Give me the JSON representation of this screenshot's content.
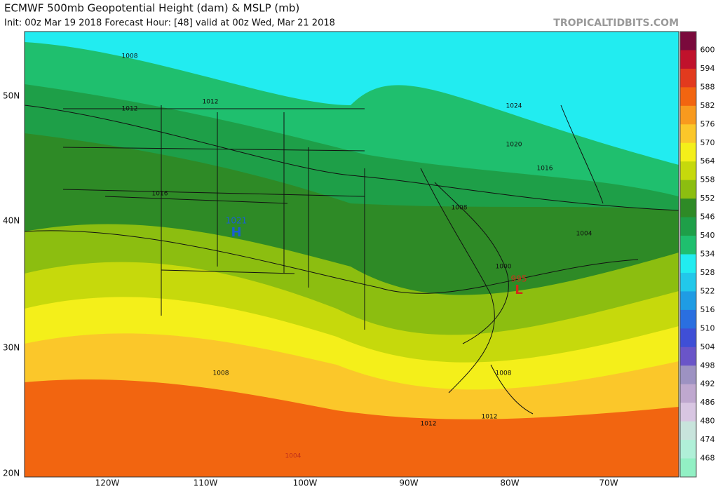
{
  "header": {
    "title": "ECMWF 500mb Geopotential Height (dam) & MSLP (mb)",
    "subtitle": "Init: 00z Mar 19 2018   Forecast Hour: [48]   valid at 00z Wed, Mar 21 2018",
    "credit": "TROPICALTIDBITS.COM"
  },
  "map": {
    "lat_labels": [
      "50N",
      "40N",
      "30N",
      "20N"
    ],
    "lon_labels": [
      "120W",
      "110W",
      "100W",
      "90W",
      "80W",
      "70W"
    ],
    "annotations": [
      "1008",
      "1012",
      "1012",
      "1016",
      "1024",
      "1020",
      "1016",
      "1008",
      "1004",
      "1000",
      "995",
      "L",
      "1021",
      "H",
      "1008",
      "1008",
      "1012",
      "1012",
      "1004"
    ]
  },
  "legend": {
    "labels": [
      "600",
      "594",
      "588",
      "582",
      "576",
      "570",
      "564",
      "558",
      "552",
      "546",
      "540",
      "534",
      "528",
      "522",
      "516",
      "510",
      "504",
      "498",
      "492",
      "486",
      "480",
      "474",
      "468"
    ],
    "colors": [
      "#7a0a3c",
      "#c0122c",
      "#e23a1e",
      "#f26510",
      "#f89a1e",
      "#fbc72a",
      "#f4ef1a",
      "#c6d90c",
      "#8cbe10",
      "#2e8a26",
      "#1e9f48",
      "#1fbf6e",
      "#22ecf0",
      "#22c8ea",
      "#1f9ce4",
      "#2a6fe0",
      "#3f4fd6",
      "#6a55c8",
      "#9d92c2",
      "#bfa8cf",
      "#d8c6e2",
      "#c8e4dc",
      "#b0f0d8",
      "#92f0c4"
    ]
  }
}
